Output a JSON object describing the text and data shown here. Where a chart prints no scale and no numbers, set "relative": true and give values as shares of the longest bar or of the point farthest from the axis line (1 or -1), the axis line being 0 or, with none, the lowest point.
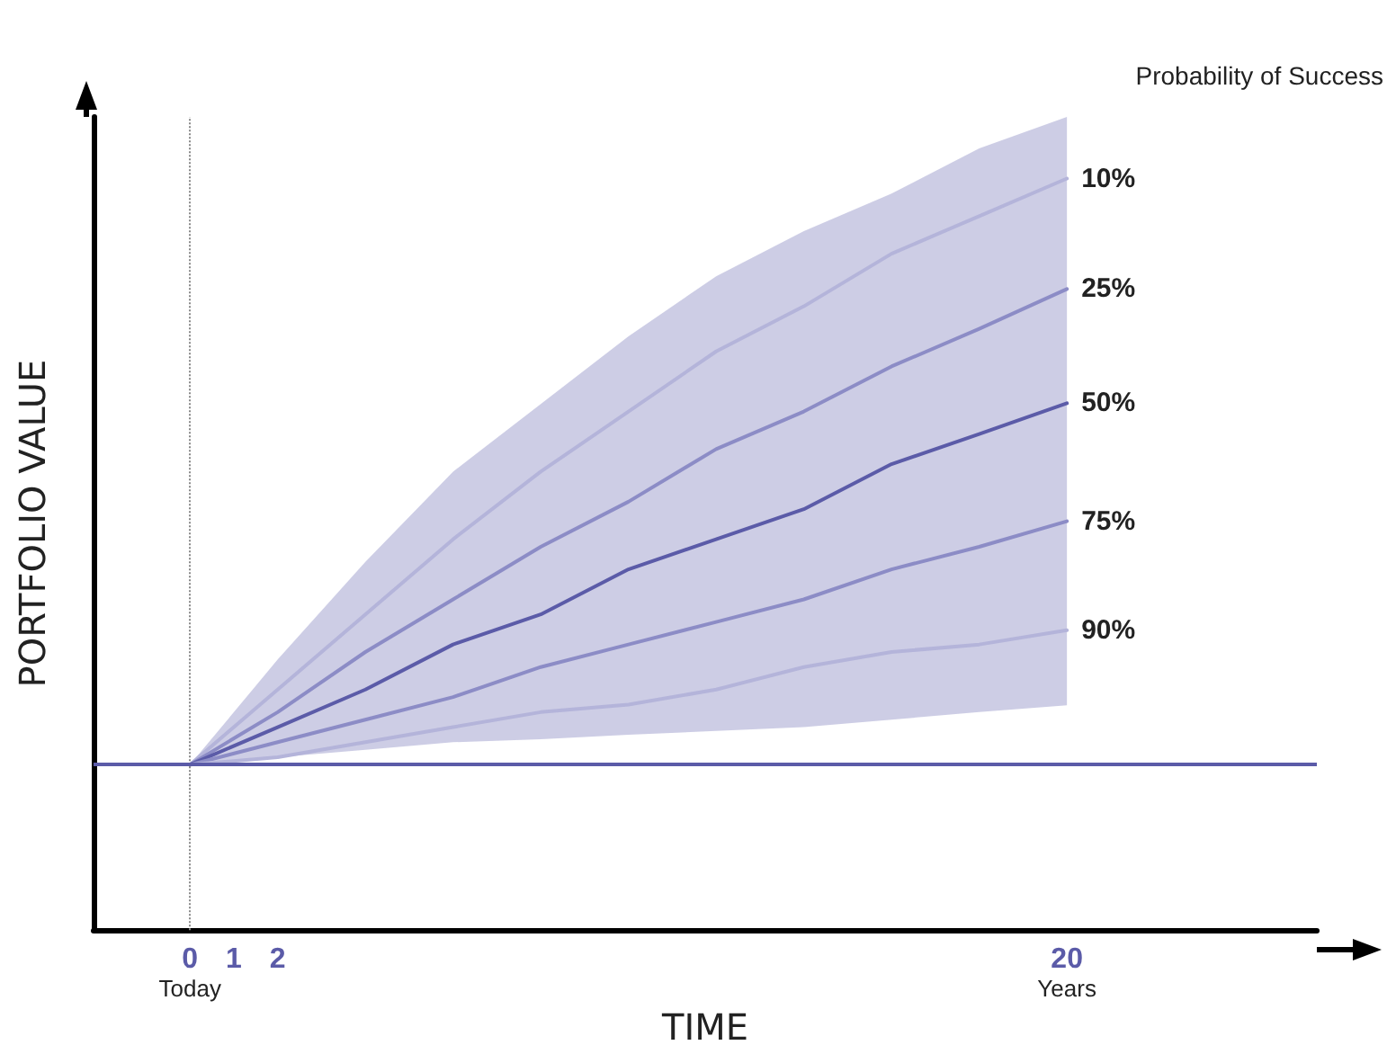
{
  "chart_data": {
    "type": "line",
    "relative": true,
    "xlabel": "TIME",
    "ylabel": "PORTFOLIO VALUE",
    "legend_title": "Probability of Success",
    "x": [
      0,
      2,
      4,
      6,
      8,
      10,
      12,
      14,
      16,
      18,
      20
    ],
    "xlim": [
      -2.2,
      25.7
    ],
    "xticks": [
      {
        "value": 0,
        "label": "0\nToday"
      },
      1,
      2,
      {
        "value": 20,
        "label": "20\nYears"
      }
    ],
    "series": [
      {
        "name": "10%",
        "color": "#b4b4da",
        "values": [
          0.22,
          0.32,
          0.42,
          0.52,
          0.61,
          0.69,
          0.77,
          0.83,
          0.9,
          0.95,
          1.0
        ]
      },
      {
        "name": "25%",
        "color": "#8c8cc6",
        "values": [
          0.22,
          0.29,
          0.37,
          0.44,
          0.51,
          0.57,
          0.64,
          0.69,
          0.75,
          0.8,
          0.853
        ]
      },
      {
        "name": "50%",
        "color": "#5b5ba8",
        "values": [
          0.22,
          0.27,
          0.32,
          0.38,
          0.42,
          0.48,
          0.52,
          0.56,
          0.62,
          0.66,
          0.701
        ],
        "lower": [
          0.22,
          0.23,
          0.24,
          0.25,
          0.254,
          0.26,
          0.265,
          0.27,
          0.28,
          0.29,
          0.299
        ],
        "upper": [
          0.22,
          0.36,
          0.49,
          0.61,
          0.7,
          0.79,
          0.87,
          0.93,
          0.98,
          1.04,
          1.082
        ]
      },
      {
        "name": "75%",
        "color": "#8c8cc6",
        "values": [
          0.22,
          0.25,
          0.28,
          0.31,
          0.35,
          0.38,
          0.41,
          0.44,
          0.48,
          0.51,
          0.544
        ]
      },
      {
        "name": "90%",
        "color": "#b4b4da",
        "values": [
          0.22,
          0.23,
          0.25,
          0.27,
          0.29,
          0.3,
          0.32,
          0.35,
          0.37,
          0.38,
          0.399
        ]
      }
    ],
    "ref_lines": [
      {
        "axis": "x",
        "value": 0,
        "color": "#888888",
        "line_style": "dotted"
      },
      {
        "axis": "y",
        "value": 0.22,
        "color": "#5b5ba8",
        "line_style": "solid"
      }
    ],
    "legend": false,
    "grid": false,
    "marker": "none",
    "line_style": "solid"
  }
}
